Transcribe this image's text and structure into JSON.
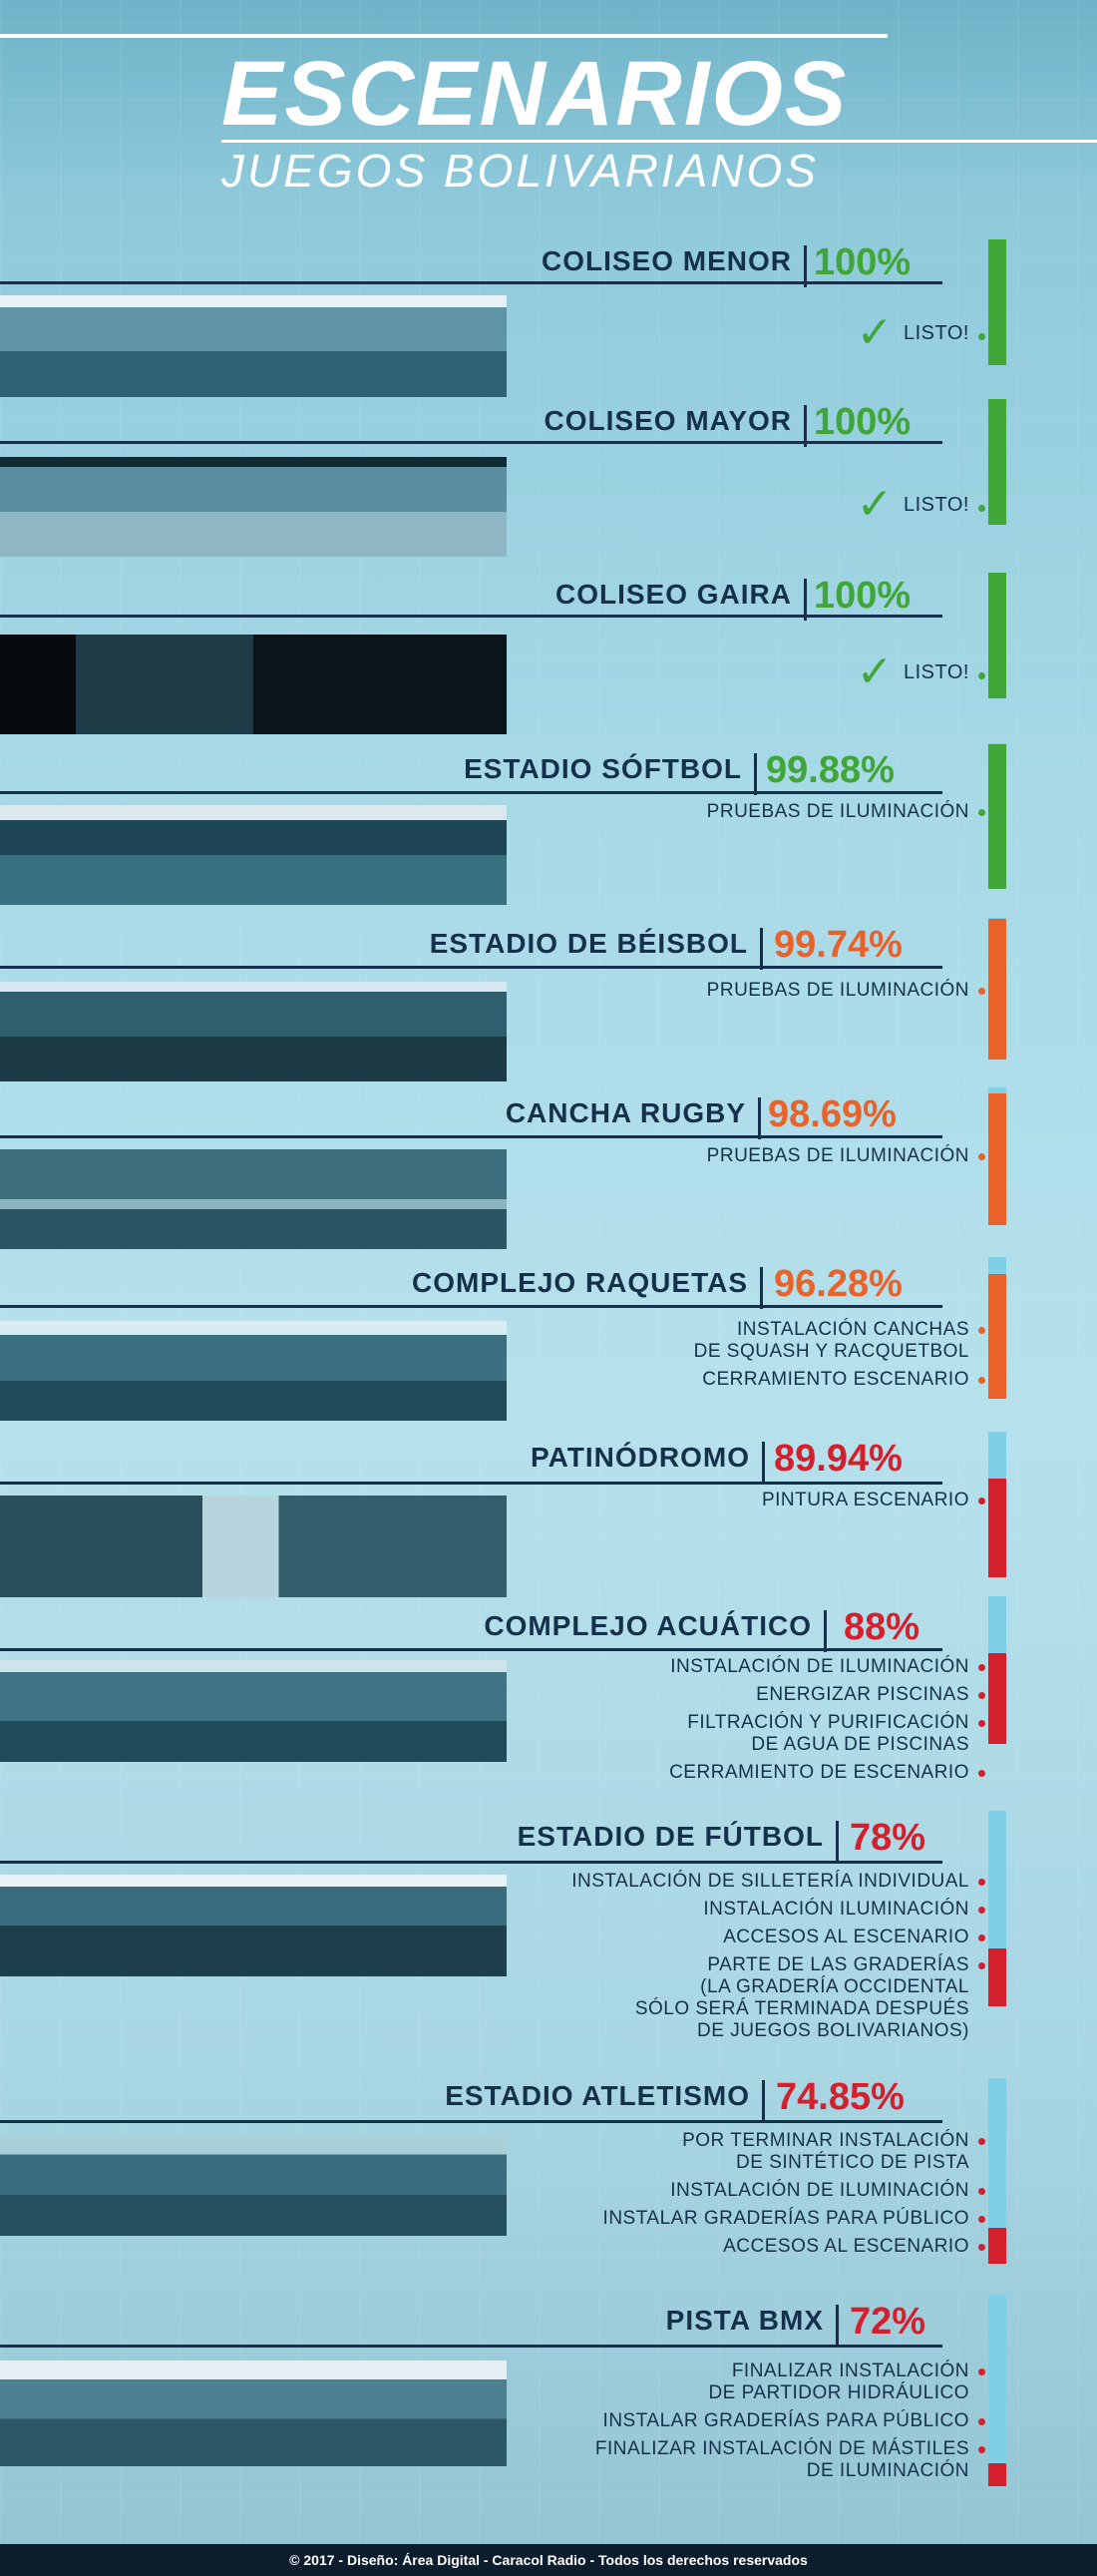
{
  "header": {
    "title": "ESCENARIOS",
    "subtitle": "JUEGOS BOLIVARIANOS"
  },
  "colors": {
    "green": "#3fa637",
    "orange": "#e8622a",
    "red": "#d3202c",
    "light_blue": "#7fd0e6",
    "navy": "#15304a"
  },
  "venues": [
    {
      "name": "COLISEO MENOR",
      "percent": "100%",
      "progress": 100,
      "status": "green",
      "listo": true,
      "check": "✓",
      "status_label": "LISTO!",
      "notes": []
    },
    {
      "name": "COLISEO MAYOR",
      "percent": "100%",
      "progress": 100,
      "status": "green",
      "listo": true,
      "check": "✓",
      "status_label": "LISTO!",
      "notes": []
    },
    {
      "name": "COLISEO GAIRA",
      "percent": "100%",
      "progress": 100,
      "status": "green",
      "listo": true,
      "check": "✓",
      "status_label": "LISTO!",
      "notes": []
    },
    {
      "name": "ESTADIO SÓFTBOL",
      "percent": "99.88%",
      "progress": 99.88,
      "status": "green",
      "listo": false,
      "notes": [
        "PRUEBAS DE ILUMINACIÓN"
      ]
    },
    {
      "name": "ESTADIO DE BÉISBOL",
      "percent": "99.74%",
      "progress": 99.74,
      "status": "orange",
      "listo": false,
      "notes": [
        "PRUEBAS DE ILUMINACIÓN"
      ]
    },
    {
      "name": "CANCHA RUGBY",
      "percent": "98.69%",
      "progress": 98.69,
      "status": "orange",
      "listo": false,
      "notes": [
        "PRUEBAS DE ILUMINACIÓN"
      ]
    },
    {
      "name": "COMPLEJO RAQUETAS",
      "percent": "96.28%",
      "progress": 96.28,
      "status": "orange",
      "listo": false,
      "notes": [
        "INSTALACIÓN CANCHAS\nDE SQUASH Y RACQUETBOL",
        "CERRAMIENTO ESCENARIO"
      ]
    },
    {
      "name": "PATINÓDROMO",
      "percent": "89.94%",
      "progress": 89.94,
      "status": "red",
      "listo": false,
      "notes": [
        "PINTURA ESCENARIO"
      ]
    },
    {
      "name": "COMPLEJO ACUÁTICO",
      "percent": "88%",
      "progress": 88,
      "status": "red",
      "listo": false,
      "notes": [
        "INSTALACIÓN DE ILUMINACIÓN",
        "ENERGIZAR PISCINAS",
        "FILTRACIÓN Y PURIFICACIÓN\nDE AGUA DE PISCINAS",
        "CERRAMIENTO DE ESCENARIO"
      ]
    },
    {
      "name": "ESTADIO DE FÚTBOL",
      "percent": "78%",
      "progress": 78,
      "status": "red",
      "listo": false,
      "notes": [
        "INSTALACIÓN DE SILLETERÍA INDIVIDUAL",
        "INSTALACIÓN ILUMINACIÓN",
        "ACCESOS AL ESCENARIO",
        "PARTE DE LAS GRADERÍAS\n(LA GRADERÍA OCCIDENTAL\nSÓLO SERÁ TERMINADA DESPUÉS\nDE JUEGOS BOLIVARIANOS)"
      ]
    },
    {
      "name": "ESTADIO ATLETISMO",
      "percent": "74.85%",
      "progress": 74.85,
      "status": "red",
      "listo": false,
      "notes": [
        "POR TERMINAR INSTALACIÓN\nDE SINTÉTICO DE PISTA",
        "INSTALACIÓN DE ILUMINACIÓN",
        "INSTALAR GRADERÍAS PARA PÚBLICO",
        "ACCESOS AL ESCENARIO"
      ]
    },
    {
      "name": "PISTA BMX",
      "percent": "72%",
      "progress": 72,
      "status": "red",
      "listo": false,
      "notes": [
        "FINALIZAR INSTALACIÓN\nDE PARTIDOR HIDRÁULICO",
        "INSTALAR GRADERÍAS PARA PÚBLICO",
        "FINALIZAR INSTALACIÓN DE MÁSTILES\nDE ILUMINACIÓN"
      ]
    }
  ],
  "photos": [
    "coliseo-menor-photo",
    "coliseo-mayor-photo",
    "boxing-photo",
    "softball-photo",
    "baseball-photo",
    "rugby-photo",
    "rackets-photo",
    "skating-photo",
    "aquatic-photo",
    "football-photo",
    "athletics-photo",
    "bmx-photo"
  ],
  "footer": "© 2017 - Diseño: Área Digital - Caracol Radio - Todos los derechos reservados"
}
